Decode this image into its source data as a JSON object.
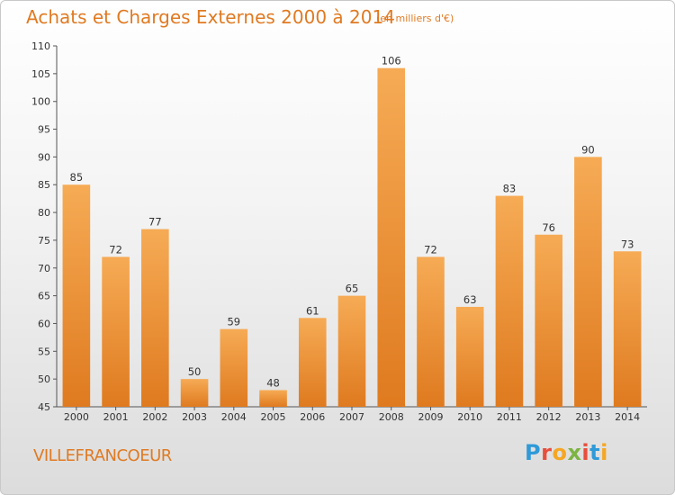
{
  "header": {
    "title": "Achats et Charges Externes 2000 à 2014",
    "unit": "(en milliers d'€)"
  },
  "footer": {
    "place": "VILLEFRANCOEUR",
    "logo_text": "Proxiti",
    "logo_colors": [
      "#2f9ad8",
      "#e84e3c",
      "#f5a623",
      "#7cb342",
      "#e84e3c",
      "#2f9ad8",
      "#f5a623"
    ]
  },
  "colors": {
    "bar_light": "#f6ab55",
    "bar_dark": "#df7a1f",
    "accent": "#e07a22"
  },
  "chart_data": {
    "type": "bar",
    "categories": [
      "2000",
      "2001",
      "2002",
      "2003",
      "2004",
      "2005",
      "2006",
      "2007",
      "2008",
      "2009",
      "2010",
      "2011",
      "2012",
      "2013",
      "2014"
    ],
    "values": [
      85,
      72,
      77,
      50,
      59,
      48,
      61,
      65,
      106,
      72,
      63,
      83,
      76,
      90,
      73
    ],
    "title": "Achats et Charges Externes 2000 à 2014",
    "ylim": [
      45,
      110
    ],
    "yticks": [
      45,
      50,
      55,
      60,
      65,
      70,
      75,
      80,
      85,
      90,
      95,
      100,
      105,
      110
    ],
    "data_labels": true,
    "grid": false
  }
}
